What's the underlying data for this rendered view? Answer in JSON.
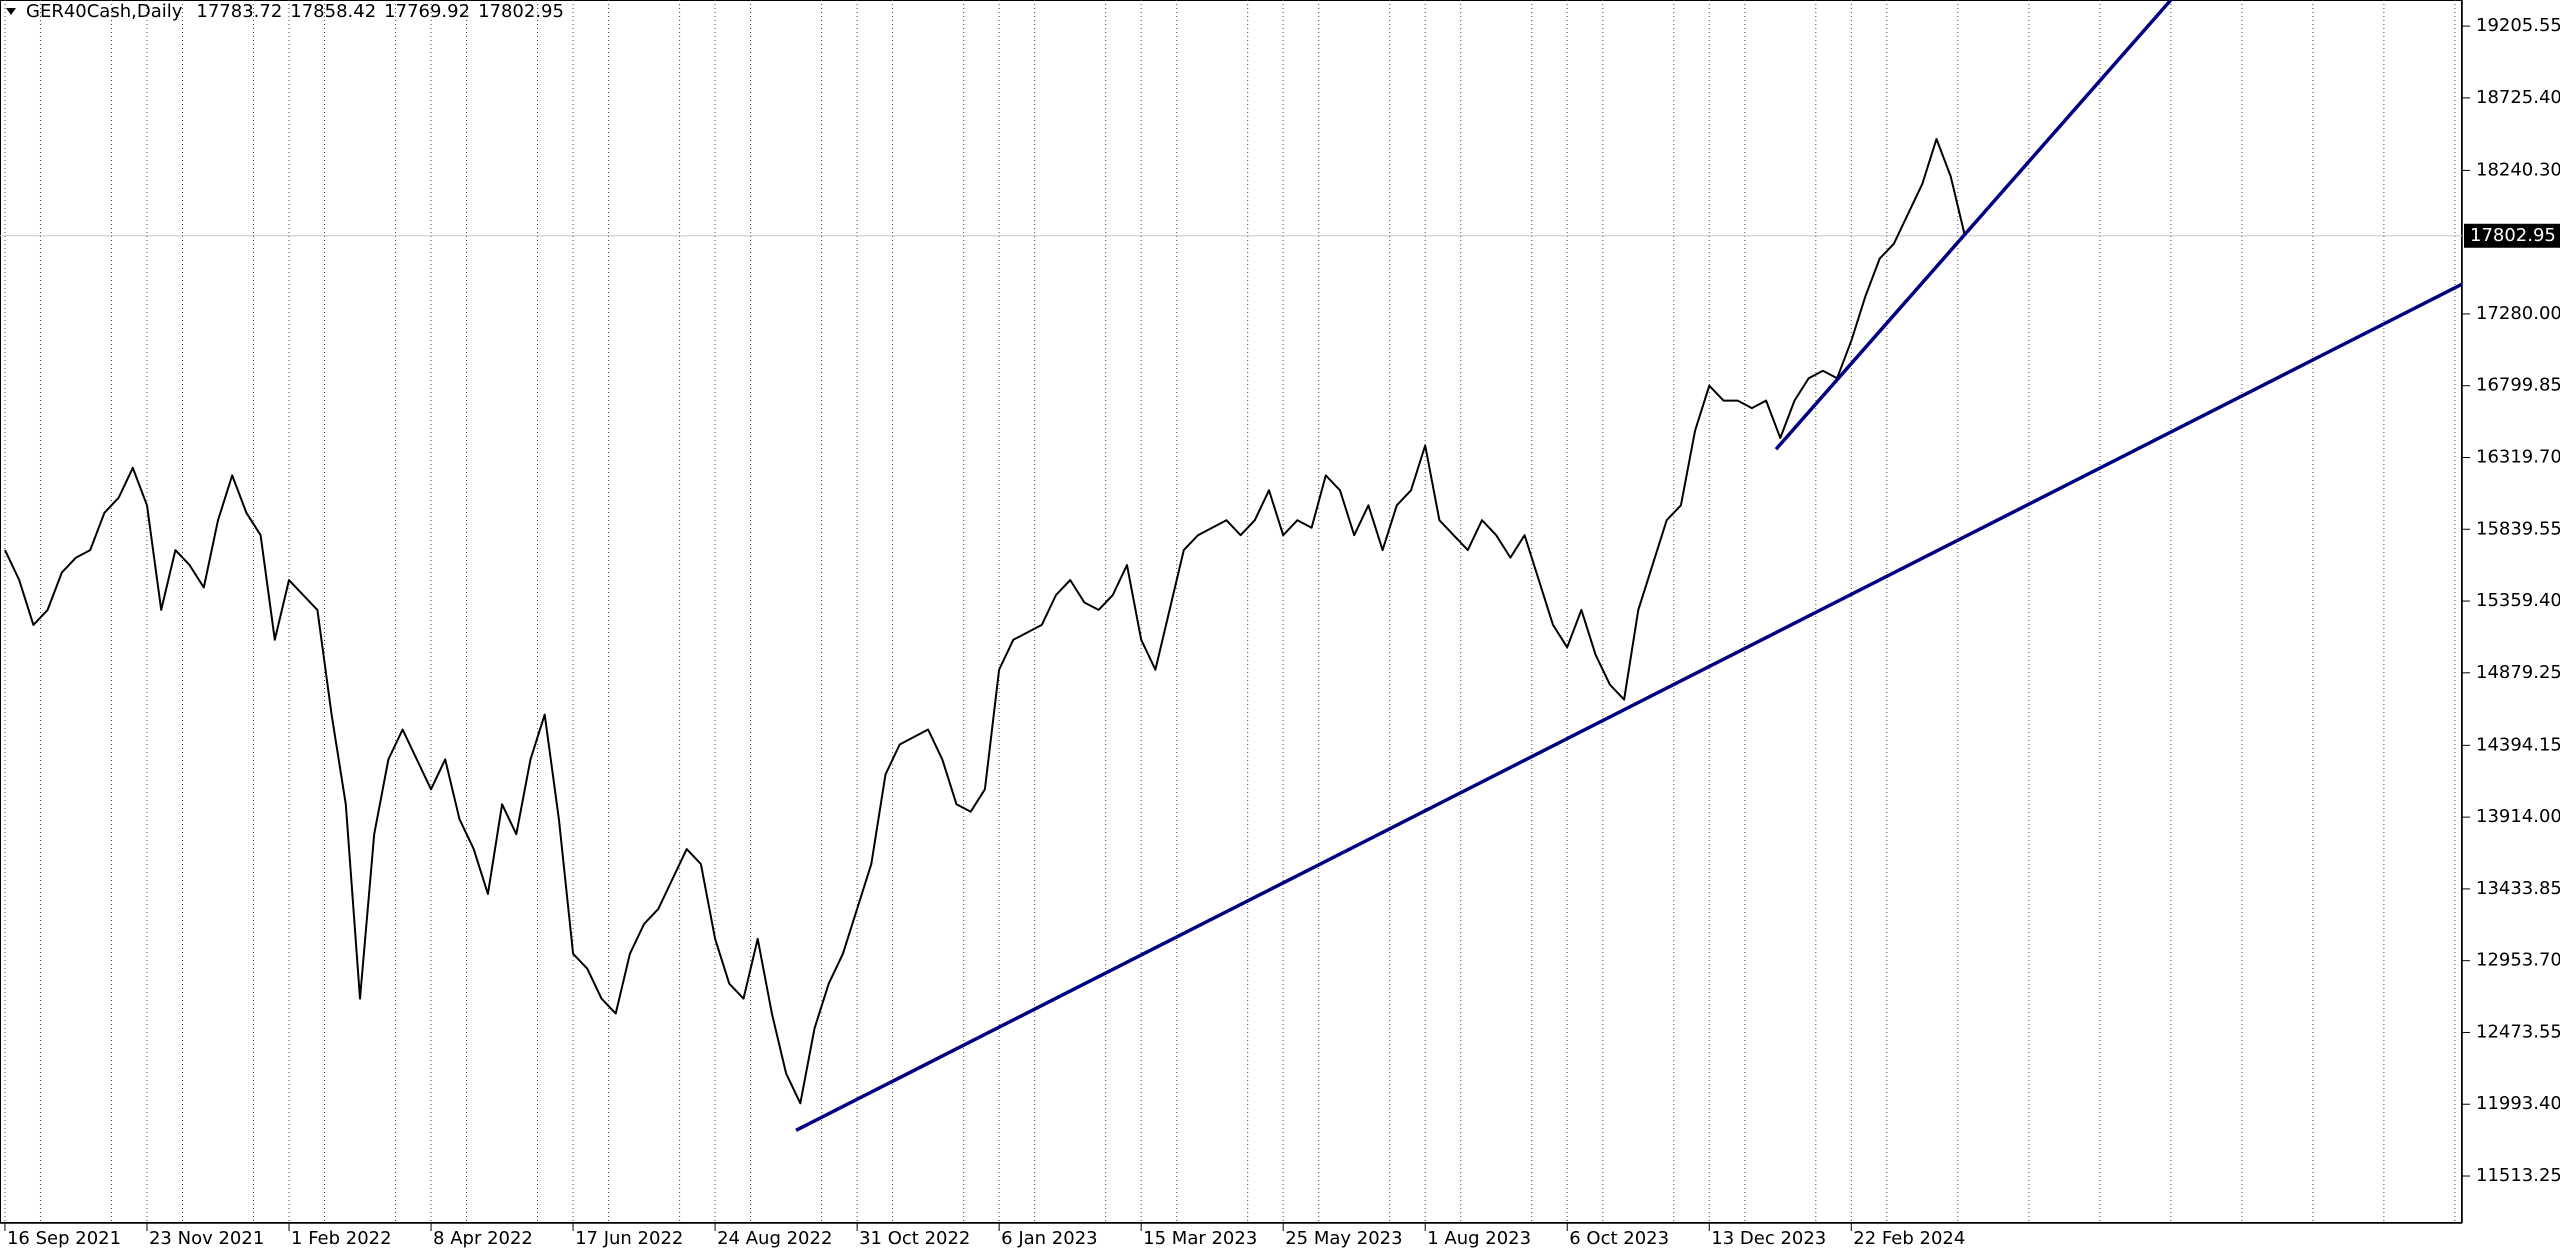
{
  "chart_data": {
    "type": "line",
    "title": "GER40Cash,Daily",
    "last_bar": [
      17783.72,
      17858.42,
      17769.92,
      17802.95
    ],
    "current_price": {
      "value": 17802.95,
      "label": "17802.95"
    },
    "categories": [
      "16 Sep 2021",
      null,
      null,
      null,
      null,
      null,
      null,
      null,
      null,
      null,
      "23 Nov 2021",
      null,
      null,
      null,
      null,
      null,
      null,
      null,
      null,
      null,
      "1 Feb 2022",
      null,
      null,
      null,
      null,
      null,
      null,
      null,
      null,
      null,
      "8 Apr 2022",
      null,
      null,
      null,
      null,
      null,
      null,
      null,
      null,
      null,
      "17 Jun 2022",
      null,
      null,
      null,
      null,
      null,
      null,
      null,
      null,
      null,
      "24 Aug 2022",
      null,
      null,
      null,
      null,
      null,
      null,
      null,
      null,
      null,
      "31 Oct 2022",
      null,
      null,
      null,
      null,
      null,
      null,
      null,
      null,
      null,
      "6 Jan 2023",
      null,
      null,
      null,
      null,
      null,
      null,
      null,
      null,
      null,
      "15 Mar 2023",
      null,
      null,
      null,
      null,
      null,
      null,
      null,
      null,
      null,
      "25 May 2023",
      null,
      null,
      null,
      null,
      null,
      null,
      null,
      null,
      null,
      "1 Aug 2023",
      null,
      null,
      null,
      null,
      null,
      null,
      null,
      null,
      null,
      "6 Oct 2023",
      null,
      null,
      null,
      null,
      null,
      null,
      null,
      null,
      null,
      "13 Dec 2023",
      null,
      null,
      null,
      null,
      null,
      null,
      null,
      null,
      null,
      "22 Feb 2024",
      null,
      null,
      null,
      null,
      null,
      null,
      null,
      null
    ],
    "series": [
      {
        "name": "GER40Cash",
        "color": "#000000",
        "values": [
          15700,
          15500,
          15200,
          15300,
          15550,
          15650,
          15700,
          15950,
          16050,
          16250,
          16000,
          15300,
          15700,
          15600,
          15450,
          15900,
          16200,
          15950,
          15800,
          15100,
          15500,
          15400,
          15300,
          14600,
          14000,
          12700,
          13800,
          14300,
          14500,
          14300,
          14100,
          14300,
          13900,
          13700,
          13400,
          14000,
          13800,
          14300,
          14600,
          13900,
          13000,
          12900,
          12700,
          12600,
          13000,
          13200,
          13300,
          13500,
          13700,
          13600,
          13100,
          12800,
          12700,
          13100,
          12600,
          12200,
          12000,
          12500,
          12800,
          13000,
          13300,
          13600,
          14200,
          14400,
          14450,
          14500,
          14300,
          14000,
          13950,
          14100,
          14900,
          15100,
          15150,
          15200,
          15400,
          15500,
          15350,
          15300,
          15400,
          15600,
          15100,
          14900,
          15300,
          15700,
          15800,
          15850,
          15900,
          15800,
          15900,
          16100,
          15800,
          15900,
          15850,
          16200,
          16100,
          15800,
          16000,
          15700,
          16000,
          16100,
          16400,
          15900,
          15800,
          15700,
          15900,
          15800,
          15650,
          15800,
          15500,
          15200,
          15050,
          15300,
          15000,
          14800,
          14700,
          15300,
          15600,
          15900,
          16000,
          16500,
          16800,
          16700,
          16700,
          16650,
          16700,
          16450,
          16700,
          16850,
          16900,
          16850,
          17100,
          17400,
          17650,
          17750,
          17950,
          18150,
          18450,
          18200,
          17802.95
        ]
      }
    ],
    "trendlines": [
      {
        "color": "#000080",
        "x": [
          55.7,
          173
        ],
        "y": [
          11819,
          17479
        ]
      },
      {
        "color": "#000080",
        "x": [
          124.7,
          152.5
        ],
        "y": [
          16375,
          19380
        ]
      }
    ],
    "xlim": [
      -0.35,
      173
    ],
    "ylim": [
      11199,
      19380
    ],
    "yticks": [
      {
        "value": 11513.25,
        "label": "11513.25"
      },
      {
        "value": 11993.4,
        "label": "11993.40"
      },
      {
        "value": 12473.55,
        "label": "12473.55"
      },
      {
        "value": 12953.7,
        "label": "12953.70"
      },
      {
        "value": 13433.85,
        "label": "13433.85"
      },
      {
        "value": 13914,
        "label": "13914.00"
      },
      {
        "value": 14394.15,
        "label": "14394.15"
      },
      {
        "value": 14879.25,
        "label": "14879.25"
      },
      {
        "value": 15359.4,
        "label": "15359.40"
      },
      {
        "value": 15839.55,
        "label": "15839.55"
      },
      {
        "value": 16319.7,
        "label": "16319.70"
      },
      {
        "value": 16799.85,
        "label": "16799.85"
      },
      {
        "value": 17280,
        "label": "17280.00"
      },
      {
        "value": 18240.3,
        "label": "18240.30"
      },
      {
        "value": 18725.4,
        "label": "18725.40"
      },
      {
        "value": 19205.55,
        "label": "19205.55"
      }
    ],
    "grid": true
  }
}
